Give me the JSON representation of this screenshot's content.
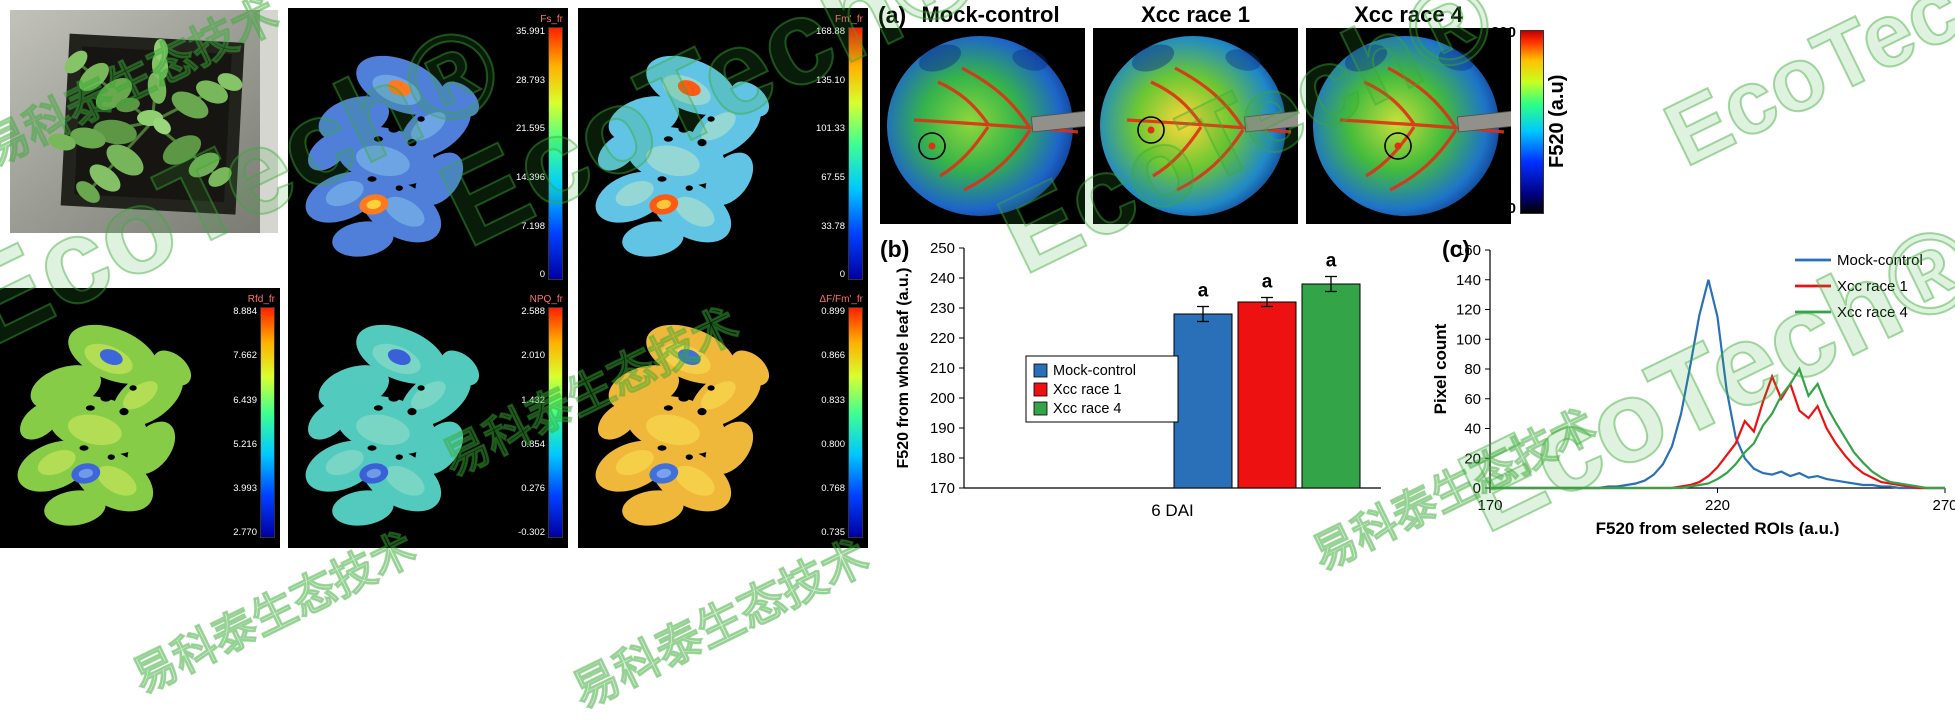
{
  "watermark": {
    "brand": "EcoTech®",
    "cn": "易科泰生态技术",
    "color": "#3aaa35"
  },
  "fluor_maps": {
    "panels": [
      {
        "label": "Fs_fr",
        "ticks": [
          "35.991",
          "28.793",
          "21.595",
          "14.396",
          "7.198",
          "0"
        ],
        "palette": {
          "base": "#4f7fd8",
          "light": "#7ab4e8",
          "spot1": "#ff7a1e",
          "spot2": "#ffd23c"
        }
      },
      {
        "label": "Fm'_fr",
        "ticks": [
          "168.88",
          "135.10",
          "101.33",
          "67.55",
          "33.78",
          "0"
        ],
        "palette": {
          "base": "#62c4e4",
          "light": "#a9e0cf",
          "spot1": "#ff5a14",
          "spot2": "#ffc83c"
        }
      },
      {
        "label": "Rfd_fr",
        "ticks": [
          "8.884",
          "7.662",
          "6.439",
          "5.216",
          "3.993",
          "2.770"
        ],
        "palette": {
          "base": "#86cc46",
          "light": "#c4e45a",
          "spot1": "#3d66d8",
          "spot2": "#6f9ae8"
        }
      },
      {
        "label": "NPQ_fr",
        "ticks": [
          "2.588",
          "2.010",
          "1.432",
          "0.854",
          "0.276",
          "-0.302"
        ],
        "palette": {
          "base": "#52cabe",
          "light": "#8adcc8",
          "spot1": "#3a60d8",
          "spot2": "#6f9ae8"
        }
      },
      {
        "label": "ΔF/Fm'_fr",
        "ticks": [
          "0.899",
          "0.866",
          "0.833",
          "0.800",
          "0.768",
          "0.735"
        ],
        "palette": {
          "base": "#f0b83a",
          "light": "#f8d84e",
          "spot1": "#4070d8",
          "spot2": "#7aa2ec"
        }
      }
    ]
  },
  "panel_a": {
    "label": "(a)",
    "treatments": [
      "Mock-control",
      "Xcc race 1",
      "Xcc race 4"
    ],
    "colorbar": {
      "max": "300",
      "min": "170",
      "title": "F520 (a.u)"
    },
    "leaves": [
      {
        "name": "Mock-control",
        "roi": [
          52,
          118
        ],
        "palette": {
          "center": "#8fd83a",
          "mid": "#35b44a",
          "edge": "#1e66c8",
          "deep": "#0a2a80"
        }
      },
      {
        "name": "Xcc race 1",
        "roi": [
          58,
          102
        ],
        "palette": {
          "center": "#ffd83a",
          "mid": "#6cc832",
          "edge": "#2088c8",
          "deep": "#0a2a80"
        }
      },
      {
        "name": "Xcc race 4",
        "roi": [
          92,
          118
        ],
        "palette": {
          "center": "#c8e03a",
          "mid": "#44bc3c",
          "edge": "#1e74c8",
          "deep": "#0a2a80"
        }
      }
    ]
  },
  "chart_data": [
    {
      "id": "b",
      "type": "bar",
      "panel_label": "(b)",
      "categories": [
        "Mock-control",
        "Xcc race 1",
        "Xcc race 4"
      ],
      "values": [
        228,
        232,
        238
      ],
      "errors": [
        2.5,
        1.5,
        2.5
      ],
      "sig_letters": [
        "a",
        "a",
        "a"
      ],
      "colors": [
        "#2970B8",
        "#EE1111",
        "#33A448"
      ],
      "xlabel": "6 DAI",
      "ylabel": "F520 from whole leaf (a.u.)",
      "ylim": [
        170,
        250
      ],
      "ytick_step": 10,
      "legend": [
        "Mock-control",
        "Xcc race 1",
        "Xcc race 4"
      ],
      "legend_position": "middle-left",
      "grid": false
    },
    {
      "id": "c",
      "type": "line",
      "panel_label": "(c)",
      "xlabel": "F520 from selected ROIs (a.u.)",
      "ylabel": "Pixel count",
      "xlim": [
        170,
        270
      ],
      "ylim": [
        0,
        160
      ],
      "xticks": [
        170,
        220,
        270
      ],
      "ytick_step": 20,
      "legend_position": "top-right",
      "grid": false,
      "series": [
        {
          "name": "Mock-control",
          "color": "#2970B8",
          "x0": 170,
          "dx": 2,
          "y": [
            0,
            0,
            0,
            0,
            0,
            0,
            0,
            0,
            0,
            0,
            0,
            0,
            0,
            1,
            1,
            2,
            3,
            5,
            9,
            16,
            28,
            50,
            82,
            116,
            140,
            115,
            66,
            34,
            20,
            13,
            10,
            9,
            11,
            8,
            10,
            7,
            8,
            6,
            5,
            4,
            3,
            2,
            2,
            1,
            1,
            0,
            0,
            0,
            0,
            0,
            0
          ]
        },
        {
          "name": "Xcc race 1",
          "color": "#EE1111",
          "x0": 170,
          "dx": 2,
          "y": [
            0,
            0,
            0,
            0,
            0,
            0,
            0,
            0,
            0,
            0,
            0,
            0,
            0,
            0,
            0,
            0,
            0,
            0,
            0,
            0,
            0,
            1,
            2,
            4,
            8,
            14,
            22,
            30,
            45,
            38,
            58,
            75,
            60,
            70,
            52,
            47,
            55,
            40,
            30,
            22,
            15,
            10,
            7,
            4,
            3,
            2,
            1,
            0,
            0,
            0,
            0
          ]
        },
        {
          "name": "Xcc race 4",
          "color": "#33A448",
          "x0": 170,
          "dx": 2,
          "y": [
            0,
            0,
            0,
            0,
            0,
            0,
            0,
            0,
            0,
            0,
            0,
            0,
            0,
            0,
            0,
            0,
            0,
            0,
            0,
            0,
            0,
            0,
            1,
            2,
            3,
            6,
            10,
            16,
            24,
            30,
            42,
            50,
            62,
            70,
            80,
            62,
            70,
            55,
            44,
            34,
            24,
            17,
            11,
            7,
            4,
            3,
            2,
            1,
            0,
            0,
            0
          ]
        }
      ]
    }
  ]
}
